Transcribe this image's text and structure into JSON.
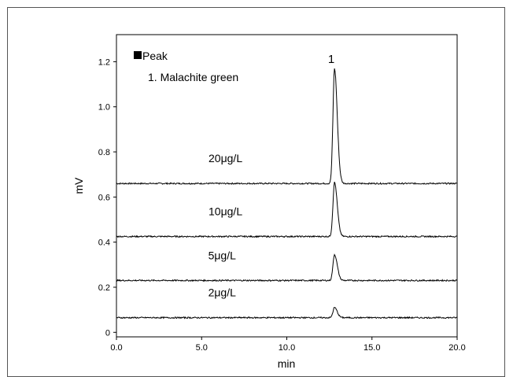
{
  "chart_data": {
    "type": "line",
    "xlabel": "min",
    "ylabel": "mV",
    "xlim": [
      0,
      20
    ],
    "ylim": [
      -0.02,
      1.32
    ],
    "x_ticks": [
      0,
      5,
      10,
      15,
      20
    ],
    "x_tick_labels": [
      "0.0",
      "5.0",
      "10.0",
      "15.0",
      "20.0"
    ],
    "y_ticks": [
      0,
      0.2,
      0.4,
      0.6,
      0.8,
      1.0,
      1.2
    ],
    "y_tick_labels": [
      "0",
      "0.2",
      "0.4",
      "0.6",
      "0.8",
      "1.0",
      "1.2"
    ],
    "legend": {
      "title": "Peak",
      "entries": [
        "1. Malachite green"
      ],
      "placement": "top-left"
    },
    "peak_label": "1",
    "peak_time": 12.8,
    "grid": false,
    "series": [
      {
        "name": "20μg/L",
        "baseline": 0.66,
        "peak_top": 1.17
      },
      {
        "name": "10μg/L",
        "baseline": 0.425,
        "peak_top": 0.665
      },
      {
        "name": "5μg/L",
        "baseline": 0.23,
        "peak_top": 0.345
      },
      {
        "name": "2μg/L",
        "baseline": 0.065,
        "peak_top": 0.11
      }
    ]
  },
  "colors": {
    "trace": "#000000",
    "axis": "#000000",
    "frame": "#555555"
  }
}
